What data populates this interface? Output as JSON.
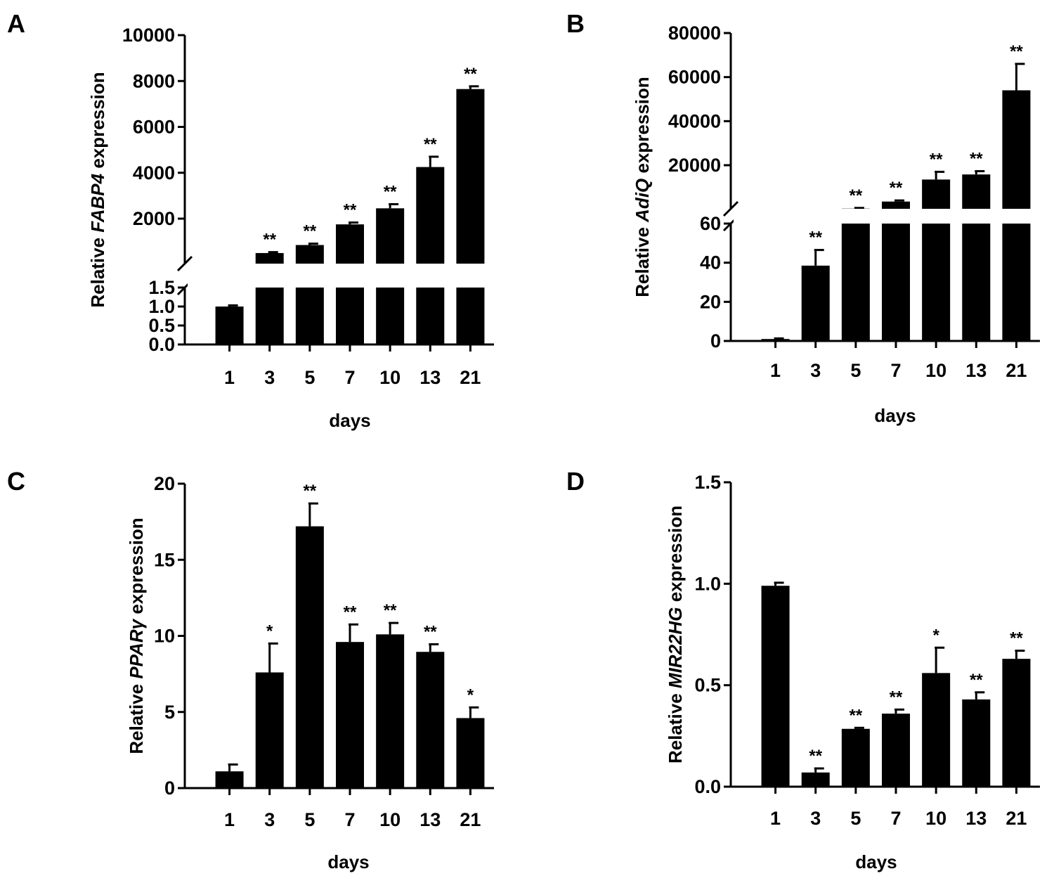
{
  "colors": {
    "bar": "#000000",
    "axis": "#000000",
    "background": "#ffffff"
  },
  "chart_data": [
    {
      "panel": "A",
      "type": "bar",
      "broken_axis": true,
      "categories": [
        "1",
        "3",
        "5",
        "7",
        "10",
        "13",
        "21"
      ],
      "values": [
        1.0,
        500,
        850,
        1750,
        2450,
        4250,
        7650
      ],
      "errors": [
        0.03,
        40,
        60,
        80,
        180,
        450,
        120
      ],
      "significance": [
        "",
        "**",
        "**",
        "**",
        "**",
        "**",
        "**"
      ],
      "xlabel": "days",
      "ylabel": {
        "prefix": "Relative ",
        "gene": "FABP4",
        "suffix": " expression"
      },
      "segments": [
        {
          "range": [
            0,
            1.5
          ],
          "ticks": [
            0.0,
            0.5,
            1.0,
            1.5
          ],
          "tick_labels": [
            "0.0",
            "0.5",
            "1.0",
            "1.5"
          ]
        },
        {
          "range": [
            0,
            10000
          ],
          "ticks": [
            2000,
            4000,
            6000,
            8000,
            10000
          ],
          "tick_labels": [
            "2000",
            "4000",
            "6000",
            "8000",
            "10000"
          ]
        }
      ]
    },
    {
      "panel": "B",
      "type": "bar",
      "broken_axis": true,
      "categories": [
        "1",
        "3",
        "5",
        "7",
        "10",
        "13",
        "21"
      ],
      "values": [
        1.0,
        38.5,
        300,
        3500,
        13500,
        15800,
        54000
      ],
      "errors": [
        0.3,
        8,
        300,
        500,
        3500,
        1500,
        12000
      ],
      "significance": [
        "",
        "**",
        "**",
        "**",
        "**",
        "**",
        "**"
      ],
      "xlabel": "days",
      "ylabel": {
        "prefix": "Relative ",
        "gene": "AdiQ",
        "suffix": " expression"
      },
      "segments": [
        {
          "range": [
            0,
            60
          ],
          "ticks": [
            0,
            20,
            40,
            60
          ],
          "tick_labels": [
            "0",
            "20",
            "40",
            "60"
          ]
        },
        {
          "range": [
            0,
            80000
          ],
          "ticks": [
            20000,
            40000,
            60000,
            80000
          ],
          "tick_labels": [
            "20000",
            "40000",
            "60000",
            "80000"
          ]
        }
      ]
    },
    {
      "panel": "C",
      "type": "bar",
      "broken_axis": false,
      "categories": [
        "1",
        "3",
        "5",
        "7",
        "10",
        "13",
        "21"
      ],
      "values": [
        1.1,
        7.6,
        17.2,
        9.6,
        10.1,
        8.95,
        4.6
      ],
      "errors": [
        0.45,
        1.9,
        1.5,
        1.15,
        0.75,
        0.5,
        0.7
      ],
      "significance": [
        "",
        "*",
        "**",
        "**",
        "**",
        "**",
        "*"
      ],
      "xlabel": "days",
      "ylabel": {
        "prefix": "Relative ",
        "gene": "PPARγ",
        "suffix": " expression"
      },
      "ylim": [
        0,
        20
      ],
      "ticks": [
        0,
        5,
        10,
        15,
        20
      ],
      "tick_labels": [
        "0",
        "5",
        "10",
        "15",
        "20"
      ]
    },
    {
      "panel": "D",
      "type": "bar",
      "broken_axis": false,
      "categories": [
        "1",
        "3",
        "5",
        "7",
        "10",
        "13",
        "21"
      ],
      "values": [
        0.99,
        0.07,
        0.285,
        0.36,
        0.56,
        0.43,
        0.63
      ],
      "errors": [
        0.015,
        0.02,
        0.005,
        0.02,
        0.125,
        0.035,
        0.04
      ],
      "significance": [
        "",
        "**",
        "**",
        "**",
        "*",
        "**",
        "**"
      ],
      "xlabel": "days",
      "ylabel": {
        "prefix": "Relative ",
        "gene": "MIR22HG",
        "suffix": " expression"
      },
      "ylim": [
        0,
        1.5
      ],
      "ticks": [
        0.0,
        0.5,
        1.0,
        1.5
      ],
      "tick_labels": [
        "0.0",
        "0.5",
        "1.0",
        "1.5"
      ]
    }
  ]
}
